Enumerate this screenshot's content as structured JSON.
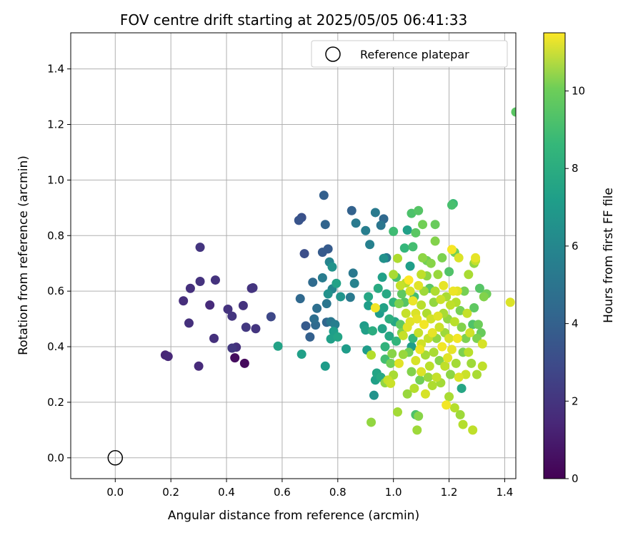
{
  "chart_data": {
    "type": "scatter",
    "title": "FOV centre drift starting at 2025/05/05 06:41:33",
    "xlabel": "Angular distance from reference (arcmin)",
    "ylabel": "Rotation from reference (arcmin)",
    "xlim": [
      -0.16,
      1.44
    ],
    "ylim": [
      -0.075,
      1.53
    ],
    "xticks": [
      "0.0",
      "0.2",
      "0.4",
      "0.6",
      "0.8",
      "1.0",
      "1.2",
      "1.4"
    ],
    "yticks": [
      "0.0",
      "0.2",
      "0.4",
      "0.6",
      "0.8",
      "1.0",
      "1.2",
      "1.4"
    ],
    "grid": true,
    "legend": {
      "position": "top-right",
      "entries": [
        {
          "label": "Reference platepar",
          "marker": "open-circle"
        }
      ]
    },
    "reference_point": {
      "x": 0.0,
      "y": 0.0
    },
    "colorbar": {
      "label": "Hours from first FF file",
      "min": 0,
      "max": 11.5,
      "ticks": [
        "0",
        "2",
        "4",
        "6",
        "8",
        "10"
      ],
      "colormap": "viridis"
    },
    "series": [
      {
        "values_note_fields": [
          "x",
          "y",
          "hours"
        ],
        "points": [
          [
            0.18,
            0.37,
            1.2
          ],
          [
            0.19,
            0.365,
            1.3
          ],
          [
            0.245,
            0.565,
            1.5
          ],
          [
            0.265,
            0.485,
            1.6
          ],
          [
            0.27,
            0.61,
            1.6
          ],
          [
            0.3,
            0.33,
            1.4
          ],
          [
            0.305,
            0.635,
            1.7
          ],
          [
            0.305,
            0.758,
            1.8
          ],
          [
            0.34,
            0.55,
            1.4
          ],
          [
            0.355,
            0.43,
            1.6
          ],
          [
            0.36,
            0.64,
            1.7
          ],
          [
            0.405,
            0.535,
            1.7
          ],
          [
            0.42,
            0.51,
            1.8
          ],
          [
            0.42,
            0.395,
            1.9
          ],
          [
            0.43,
            0.36,
            0.4
          ],
          [
            0.435,
            0.398,
            1.6
          ],
          [
            0.46,
            0.548,
            1.7
          ],
          [
            0.465,
            0.34,
            0.3
          ],
          [
            0.47,
            0.47,
            1.9
          ],
          [
            0.49,
            0.61,
            1.7
          ],
          [
            0.495,
            0.612,
            1.8
          ],
          [
            0.505,
            0.465,
            1.8
          ],
          [
            0.56,
            0.508,
            2.5
          ],
          [
            0.585,
            0.402,
            6.6
          ],
          [
            0.66,
            0.855,
            3.0
          ],
          [
            0.665,
            0.573,
            3.9
          ],
          [
            0.67,
            0.865,
            2.9
          ],
          [
            0.67,
            0.373,
            6.5
          ],
          [
            0.68,
            0.735,
            2.8
          ],
          [
            0.685,
            0.475,
            3.3
          ],
          [
            0.7,
            0.435,
            3.5
          ],
          [
            0.71,
            0.632,
            4.0
          ],
          [
            0.715,
            0.5,
            4.2
          ],
          [
            0.72,
            0.478,
            4.0
          ],
          [
            0.725,
            0.538,
            4.2
          ],
          [
            0.745,
            0.74,
            3.3
          ],
          [
            0.745,
            0.648,
            4.8
          ],
          [
            0.75,
            0.945,
            3.5
          ],
          [
            0.755,
            0.84,
            3.7
          ],
          [
            0.755,
            0.33,
            6.3
          ],
          [
            0.76,
            0.488,
            3.8
          ],
          [
            0.76,
            0.555,
            4.5
          ],
          [
            0.765,
            0.752,
            3.3
          ],
          [
            0.765,
            0.59,
            5.8
          ],
          [
            0.77,
            0.705,
            5.2
          ],
          [
            0.775,
            0.49,
            4.6
          ],
          [
            0.775,
            0.428,
            6.5
          ],
          [
            0.78,
            0.687,
            5.9
          ],
          [
            0.78,
            0.608,
            5.3
          ],
          [
            0.785,
            0.455,
            6.4
          ],
          [
            0.79,
            0.48,
            4.9
          ],
          [
            0.795,
            0.628,
            6.6
          ],
          [
            0.8,
            0.435,
            6.7
          ],
          [
            0.81,
            0.58,
            6.0
          ],
          [
            0.83,
            0.392,
            6.3
          ],
          [
            0.845,
            0.578,
            4.7
          ],
          [
            0.85,
            0.89,
            3.6
          ],
          [
            0.855,
            0.665,
            4.6
          ],
          [
            0.86,
            0.628,
            5.1
          ],
          [
            0.865,
            0.845,
            4.7
          ],
          [
            0.895,
            0.475,
            6.3
          ],
          [
            0.9,
            0.818,
            4.9
          ],
          [
            0.9,
            0.46,
            6.5
          ],
          [
            0.905,
            0.388,
            6.3
          ],
          [
            0.91,
            0.548,
            6.4
          ],
          [
            0.91,
            0.58,
            6.8
          ],
          [
            0.915,
            0.768,
            5.0
          ],
          [
            0.92,
            0.128,
            9.6
          ],
          [
            0.92,
            0.37,
            10.2
          ],
          [
            0.925,
            0.457,
            7.1
          ],
          [
            0.93,
            0.225,
            5.9
          ],
          [
            0.935,
            0.54,
            11.3
          ],
          [
            0.935,
            0.28,
            6.5
          ],
          [
            0.935,
            0.883,
            4.7
          ],
          [
            0.94,
            0.305,
            6.7
          ],
          [
            0.945,
            0.61,
            7.0
          ],
          [
            0.95,
            0.52,
            6.3
          ],
          [
            0.955,
            0.837,
            4.5
          ],
          [
            0.955,
            0.29,
            6.9
          ],
          [
            0.96,
            0.465,
            6.6
          ],
          [
            0.96,
            0.65,
            6.5
          ],
          [
            0.965,
            0.86,
            3.9
          ],
          [
            0.965,
            0.718,
            5.8
          ],
          [
            0.965,
            0.54,
            6.6
          ],
          [
            0.97,
            0.355,
            8.0
          ],
          [
            0.97,
            0.4,
            7.4
          ],
          [
            0.97,
            0.27,
            9.6
          ],
          [
            0.975,
            0.72,
            4.6
          ],
          [
            0.975,
            0.59,
            6.9
          ],
          [
            0.98,
            0.28,
            10.5
          ],
          [
            0.985,
            0.5,
            7.2
          ],
          [
            0.985,
            0.438,
            6.8
          ],
          [
            0.99,
            0.268,
            10.6
          ],
          [
            0.99,
            0.34,
            9.0
          ],
          [
            0.995,
            0.375,
            9.4
          ],
          [
            1.0,
            0.815,
            7.9
          ],
          [
            1.0,
            0.56,
            7.5
          ],
          [
            1.0,
            0.66,
            10.0
          ],
          [
            1.0,
            0.298,
            10.0
          ],
          [
            1.005,
            0.49,
            6.8
          ],
          [
            1.01,
            0.65,
            8.1
          ],
          [
            1.01,
            0.42,
            7.5
          ],
          [
            1.015,
            0.718,
            10.1
          ],
          [
            1.015,
            0.165,
            9.9
          ],
          [
            1.02,
            0.555,
            9.2
          ],
          [
            1.02,
            0.34,
            11.0
          ],
          [
            1.025,
            0.48,
            8.7
          ],
          [
            1.025,
            0.62,
            10.5
          ],
          [
            1.03,
            0.45,
            9.3
          ],
          [
            1.03,
            0.59,
            8.6
          ],
          [
            1.035,
            0.44,
            10.5
          ],
          [
            1.035,
            0.372,
            9.7
          ],
          [
            1.04,
            0.755,
            7.6
          ],
          [
            1.04,
            0.56,
            8.4
          ],
          [
            1.045,
            0.63,
            10.2
          ],
          [
            1.045,
            0.52,
            10.5
          ],
          [
            1.05,
            0.47,
            11.0
          ],
          [
            1.05,
            0.82,
            6.5
          ],
          [
            1.05,
            0.23,
            9.7
          ],
          [
            1.055,
            0.38,
            9.0
          ],
          [
            1.055,
            0.64,
            11.5
          ],
          [
            1.06,
            0.69,
            6.4
          ],
          [
            1.06,
            0.6,
            10.8
          ],
          [
            1.06,
            0.49,
            11.0
          ],
          [
            1.065,
            0.4,
            6.3
          ],
          [
            1.065,
            0.31,
            9.3
          ],
          [
            1.065,
            0.88,
            8.2
          ],
          [
            1.07,
            0.565,
            11.2
          ],
          [
            1.07,
            0.76,
            8.0
          ],
          [
            1.07,
            0.43,
            7.6
          ],
          [
            1.075,
            0.25,
            10.2
          ],
          [
            1.075,
            0.58,
            8.0
          ],
          [
            1.08,
            0.81,
            8.5
          ],
          [
            1.08,
            0.35,
            10.8
          ],
          [
            1.08,
            0.52,
            10.9
          ],
          [
            1.08,
            0.155,
            8.2
          ],
          [
            1.085,
            0.1,
            9.8
          ],
          [
            1.085,
            0.5,
            11.1
          ],
          [
            1.09,
            0.62,
            11.0
          ],
          [
            1.09,
            0.15,
            9.4
          ],
          [
            1.09,
            0.45,
            10.5
          ],
          [
            1.09,
            0.89,
            8.4
          ],
          [
            1.095,
            0.39,
            11.2
          ],
          [
            1.095,
            0.28,
            9.0
          ],
          [
            1.1,
            0.66,
            10.4
          ],
          [
            1.1,
            0.55,
            10.3
          ],
          [
            1.1,
            0.41,
            10.7
          ],
          [
            1.1,
            0.31,
            10.9
          ],
          [
            1.105,
            0.72,
            9.5
          ],
          [
            1.105,
            0.84,
            9.0
          ],
          [
            1.11,
            0.6,
            9.8
          ],
          [
            1.11,
            0.48,
            11.3
          ],
          [
            1.115,
            0.23,
            10.8
          ],
          [
            1.115,
            0.37,
            9.9
          ],
          [
            1.12,
            0.71,
            9.0
          ],
          [
            1.12,
            0.52,
            10.1
          ],
          [
            1.12,
            0.655,
            9.5
          ],
          [
            1.125,
            0.43,
            10.5
          ],
          [
            1.125,
            0.29,
            9.7
          ],
          [
            1.13,
            0.61,
            8.5
          ],
          [
            1.13,
            0.33,
            10.3
          ],
          [
            1.135,
            0.5,
            10.7
          ],
          [
            1.135,
            0.7,
            9.4
          ],
          [
            1.14,
            0.26,
            10.1
          ],
          [
            1.14,
            0.45,
            11.1
          ],
          [
            1.145,
            0.56,
            9.6
          ],
          [
            1.145,
            0.38,
            10.0
          ],
          [
            1.15,
            0.84,
            8.8
          ],
          [
            1.15,
            0.6,
            10.1
          ],
          [
            1.15,
            0.78,
            9.3
          ],
          [
            1.155,
            0.43,
            9.6
          ],
          [
            1.155,
            0.29,
            10.5
          ],
          [
            1.16,
            0.51,
            11.0
          ],
          [
            1.16,
            0.66,
            9.7
          ],
          [
            1.165,
            0.35,
            9.4
          ],
          [
            1.165,
            0.47,
            10.6
          ],
          [
            1.17,
            0.57,
            10.6
          ],
          [
            1.17,
            0.27,
            9.9
          ],
          [
            1.175,
            0.4,
            11.3
          ],
          [
            1.175,
            0.72,
            9.2
          ],
          [
            1.18,
            0.52,
            10.0
          ],
          [
            1.18,
            0.62,
            11.1
          ],
          [
            1.185,
            0.33,
            10.4
          ],
          [
            1.185,
            0.45,
            9.8
          ],
          [
            1.19,
            0.19,
            11.3
          ],
          [
            1.19,
            0.58,
            10.0
          ],
          [
            1.195,
            0.36,
            11.0
          ],
          [
            1.195,
            0.5,
            9.6
          ],
          [
            1.2,
            0.22,
            10.0
          ],
          [
            1.2,
            0.67,
            8.3
          ],
          [
            1.2,
            0.43,
            10.8
          ],
          [
            1.205,
            0.3,
            9.5
          ],
          [
            1.205,
            0.55,
            10.4
          ],
          [
            1.21,
            0.75,
            11.4
          ],
          [
            1.21,
            0.91,
            8.1
          ],
          [
            1.21,
            0.39,
            11.1
          ],
          [
            1.215,
            0.6,
            11.2
          ],
          [
            1.215,
            0.915,
            7.8
          ],
          [
            1.22,
            0.18,
            10.2
          ],
          [
            1.22,
            0.49,
            10.3
          ],
          [
            1.22,
            0.74,
            9.0
          ],
          [
            1.225,
            0.56,
            10.2
          ],
          [
            1.225,
            0.34,
            9.9
          ],
          [
            1.23,
            0.43,
            11.3
          ],
          [
            1.23,
            0.6,
            11.0
          ],
          [
            1.235,
            0.72,
            10.9
          ],
          [
            1.235,
            0.29,
            10.9
          ],
          [
            1.24,
            0.53,
            9.1
          ],
          [
            1.24,
            0.155,
            9.8
          ],
          [
            1.245,
            0.47,
            9.3
          ],
          [
            1.245,
            0.25,
            6.8
          ],
          [
            1.25,
            0.38,
            9.2
          ],
          [
            1.25,
            0.12,
            10.2
          ],
          [
            1.255,
            0.6,
            9.1
          ],
          [
            1.26,
            0.43,
            9.2
          ],
          [
            1.26,
            0.3,
            10.6
          ],
          [
            1.265,
            0.52,
            10.5
          ],
          [
            1.27,
            0.38,
            10.3
          ],
          [
            1.27,
            0.66,
            10.0
          ],
          [
            1.275,
            0.45,
            10.7
          ],
          [
            1.28,
            0.34,
            9.8
          ],
          [
            1.285,
            0.48,
            8.3
          ],
          [
            1.285,
            0.1,
            10.4
          ],
          [
            1.29,
            0.7,
            9.6
          ],
          [
            1.29,
            0.54,
            8.6
          ],
          [
            1.295,
            0.72,
            11.1
          ],
          [
            1.295,
            0.71,
            10.5
          ],
          [
            1.3,
            0.43,
            9.2
          ],
          [
            1.3,
            0.3,
            10.0
          ],
          [
            1.305,
            0.48,
            8.9
          ],
          [
            1.31,
            0.61,
            8.4
          ],
          [
            1.315,
            0.45,
            8.8
          ],
          [
            1.32,
            0.33,
            10.4
          ],
          [
            1.32,
            0.41,
            10.8
          ],
          [
            1.325,
            0.58,
            9.3
          ],
          [
            1.335,
            0.59,
            8.9
          ],
          [
            1.42,
            0.56,
            10.9
          ],
          [
            1.44,
            1.245,
            8.5
          ]
        ]
      }
    ]
  }
}
